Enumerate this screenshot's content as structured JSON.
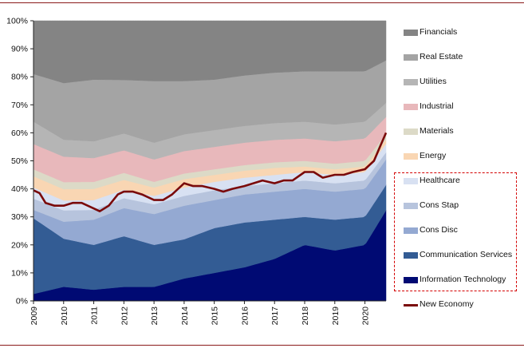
{
  "chart_data": {
    "type": "area",
    "stacking": "percent",
    "x_ticks": [
      "2009",
      "2010",
      "2011",
      "2012",
      "2013",
      "2014",
      "2015",
      "2016",
      "2017",
      "2018",
      "2019",
      "2020"
    ],
    "x_range": [
      2009.0,
      2020.7
    ],
    "y_ticks": [
      "0%",
      "10%",
      "20%",
      "30%",
      "40%",
      "50%",
      "60%",
      "70%",
      "80%",
      "90%",
      "100%"
    ],
    "ylim": [
      0,
      100
    ],
    "legend_position": "right",
    "anchor_years": [
      2009.0,
      2010.0,
      2011.0,
      2012.0,
      2013.0,
      2014.0,
      2015.0,
      2016.0,
      2017.0,
      2018.0,
      2019.0,
      2020.0,
      2020.7
    ],
    "series": [
      {
        "name": "Information Technology",
        "color": "#000a73",
        "values": [
          2.5,
          5,
          4,
          5,
          5,
          8,
          10,
          12,
          15,
          20,
          18,
          20,
          32
        ]
      },
      {
        "name": "Communication Services",
        "color": "#335c94",
        "values": [
          27,
          17,
          16,
          18,
          15,
          14,
          16,
          16,
          14,
          10,
          11,
          10,
          9
        ]
      },
      {
        "name": "Cons Disc",
        "color": "#94a9d2",
        "values": [
          3,
          6,
          9,
          10,
          11,
          12,
          10,
          10,
          10,
          10,
          10,
          10,
          9
        ]
      },
      {
        "name": "Cons Stap",
        "color": "#b7c4dd",
        "values": [
          4,
          4,
          3.5,
          3.5,
          3.5,
          3.5,
          3.5,
          3,
          3,
          3,
          3,
          3,
          2.5
        ]
      },
      {
        "name": "Healthcare",
        "color": "#d8e1f2",
        "values": [
          4,
          3.5,
          3.5,
          3,
          3,
          3,
          3,
          3,
          3,
          3,
          3,
          3,
          3
        ]
      },
      {
        "name": "Energy",
        "color": "#f9d6b3",
        "values": [
          4,
          4,
          4,
          3.5,
          3,
          3,
          2.5,
          2.5,
          2.5,
          2,
          2,
          2,
          1.5
        ]
      },
      {
        "name": "Materials",
        "color": "#dcdac7",
        "values": [
          2.5,
          2.5,
          2.5,
          2.5,
          2,
          2,
          2,
          2,
          2,
          2,
          2,
          2,
          2
        ]
      },
      {
        "name": "Industrial",
        "color": "#e8b8bb",
        "values": [
          9,
          9,
          8.5,
          8,
          8,
          8,
          8,
          8,
          8,
          8,
          8,
          8,
          6
        ]
      },
      {
        "name": "Utilities",
        "color": "#b5b5b5",
        "values": [
          8,
          6,
          6,
          6,
          6,
          6,
          6,
          6,
          6,
          6,
          6,
          6,
          5
        ]
      },
      {
        "name": "Real Estate",
        "color": "#a4a4a4",
        "values": [
          17,
          20,
          22,
          19,
          22,
          19,
          18,
          18,
          18,
          18,
          19,
          18,
          15
        ]
      },
      {
        "name": "Financials",
        "color": "#848484",
        "values": [
          19,
          22,
          21,
          21,
          21.5,
          21.5,
          21,
          19.5,
          18.5,
          18,
          18,
          18,
          14
        ]
      }
    ],
    "line": {
      "name": "New Economy",
      "color": "#7a0a0a",
      "x": [
        2009.0,
        2009.2,
        2009.4,
        2009.7,
        2010.0,
        2010.3,
        2010.6,
        2011.0,
        2011.2,
        2011.5,
        2011.8,
        2012.0,
        2012.3,
        2012.6,
        2013.0,
        2013.3,
        2013.6,
        2014.0,
        2014.3,
        2014.6,
        2015.0,
        2015.3,
        2015.6,
        2016.0,
        2016.3,
        2016.6,
        2017.0,
        2017.3,
        2017.6,
        2018.0,
        2018.3,
        2018.6,
        2019.0,
        2019.3,
        2019.6,
        2020.0,
        2020.3,
        2020.5,
        2020.7
      ],
      "y": [
        39.5,
        38.5,
        35,
        34,
        34,
        35,
        35,
        33,
        32,
        34,
        38,
        39,
        39,
        38,
        36,
        36,
        38,
        42,
        41,
        41,
        40,
        39,
        40,
        41,
        42,
        43,
        42,
        43,
        43,
        46,
        46,
        44,
        45,
        45,
        46,
        47,
        50,
        55,
        60
      ]
    },
    "legend": [
      "Financials",
      "Real Estate",
      "Utilities",
      "Industrial",
      "Materials",
      "Energy",
      "Healthcare",
      "Cons Stap",
      "Cons Disc",
      "Communication Services",
      "Information Technology",
      "New Economy"
    ]
  }
}
